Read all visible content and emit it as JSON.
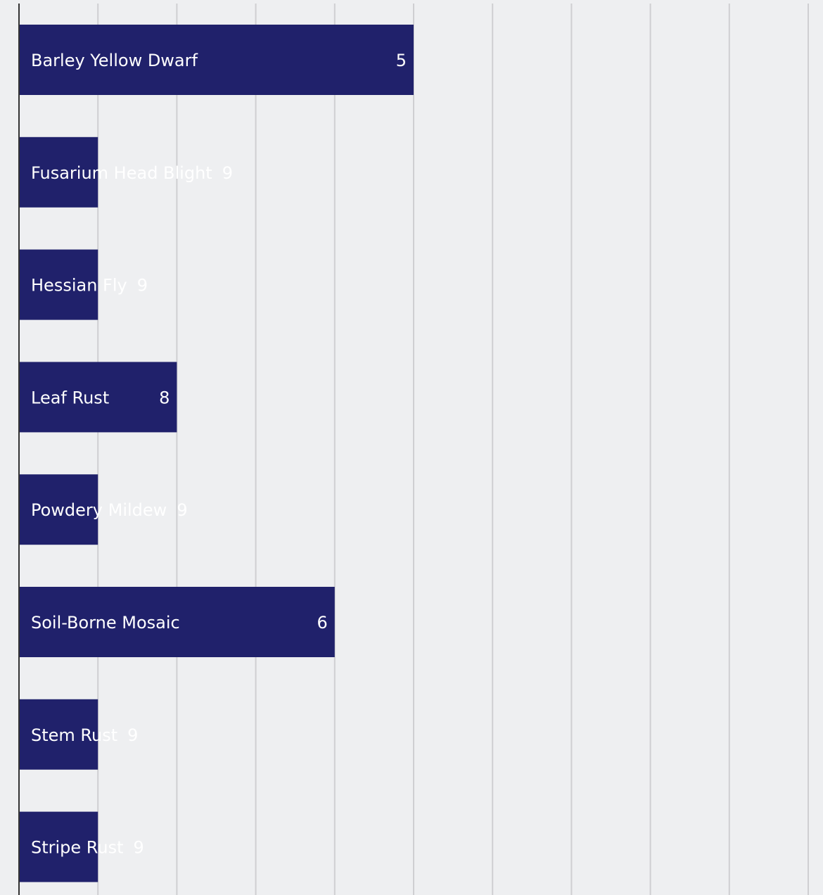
{
  "chart_data": {
    "type": "bar",
    "orientation": "horizontal",
    "categories": [
      "Barley Yellow Dwarf",
      "Fusarium Head Blight",
      "Hessian Fly",
      "Leaf Rust",
      "Powdery Mildew",
      "Soil-Borne Mosaic",
      "Stem Rust",
      "Stripe Rust"
    ],
    "values": [
      5,
      1,
      1,
      2,
      1,
      4,
      1,
      1
    ],
    "value_labels": [
      "5",
      "9",
      "9",
      "8",
      "9",
      "6",
      "9",
      "9"
    ],
    "xlim": [
      0,
      10
    ],
    "grid": true,
    "colors": {
      "bar": "#20216b",
      "background": "#eeeff1",
      "grid": "#cfcfd2",
      "axis": "#333333",
      "text": "#ffffff"
    }
  }
}
